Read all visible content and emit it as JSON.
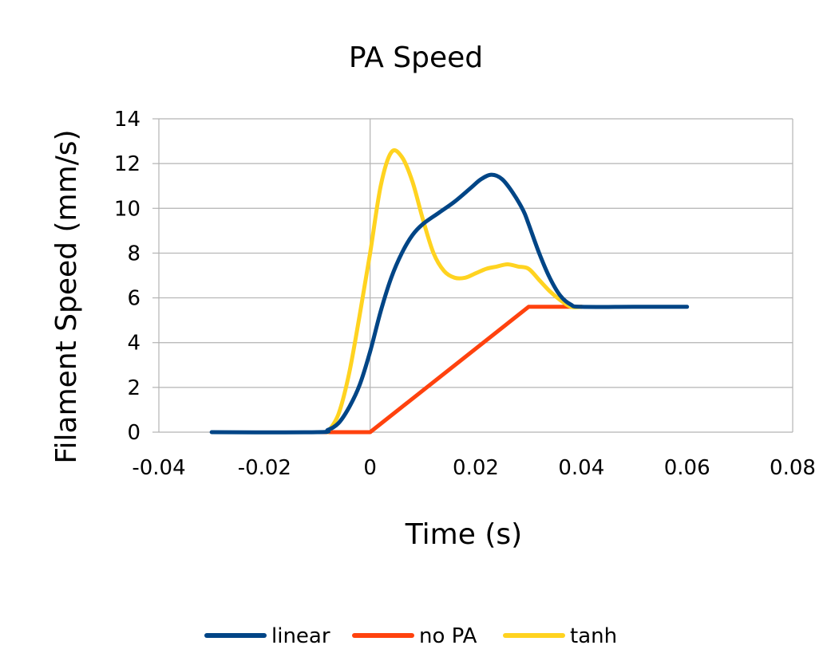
{
  "chart_data": {
    "type": "line",
    "title": "PA Speed",
    "xlabel": "Time (s)",
    "ylabel": "Filament Speed (mm/s)",
    "xlim": [
      -0.04,
      0.08
    ],
    "ylim": [
      0,
      14
    ],
    "xticks": [
      -0.04,
      -0.02,
      0,
      0.02,
      0.04,
      0.06,
      0.08
    ],
    "yticks": [
      0,
      2,
      4,
      6,
      8,
      10,
      12,
      14
    ],
    "xtick_labels": [
      "-0.04",
      "-0.02",
      "0",
      "0.02",
      "0.04",
      "0.06",
      "0.08"
    ],
    "ytick_labels": [
      "0",
      "2",
      "4",
      "6",
      "8",
      "10",
      "12",
      "14"
    ],
    "grid": true,
    "legend_position": "bottom",
    "series": [
      {
        "name": "linear",
        "color": "#004586",
        "x": [
          -0.03,
          -0.01,
          -0.008,
          -0.006,
          -0.004,
          -0.002,
          0,
          0.002,
          0.004,
          0.006,
          0.008,
          0.01,
          0.013,
          0.016,
          0.019,
          0.021,
          0.023,
          0.025,
          0.027,
          0.029,
          0.03,
          0.032,
          0.034,
          0.036,
          0.038,
          0.04,
          0.05,
          0.06
        ],
        "y": [
          0,
          0,
          0.1,
          0.4,
          1.1,
          2.1,
          3.6,
          5.4,
          6.9,
          8.0,
          8.8,
          9.3,
          9.8,
          10.3,
          10.9,
          11.3,
          11.5,
          11.3,
          10.7,
          9.9,
          9.3,
          8.0,
          6.9,
          6.1,
          5.7,
          5.6,
          5.6,
          5.6
        ]
      },
      {
        "name": "no PA",
        "color": "#ff420e",
        "x": [
          -0.01,
          0,
          0.03,
          0.04
        ],
        "y": [
          0,
          0,
          5.6,
          5.6
        ]
      },
      {
        "name": "tanh",
        "color": "#ffd320",
        "x": [
          -0.008,
          -0.006,
          -0.004,
          -0.002,
          0,
          0.002,
          0.004,
          0.006,
          0.008,
          0.01,
          0.012,
          0.014,
          0.016,
          0.018,
          0.02,
          0.022,
          0.024,
          0.026,
          0.028,
          0.03,
          0.032,
          0.034,
          0.036,
          0.038,
          0.04
        ],
        "y": [
          0,
          0.8,
          2.6,
          5.2,
          8.0,
          11.0,
          12.5,
          12.3,
          11.2,
          9.5,
          8.0,
          7.2,
          6.9,
          6.9,
          7.1,
          7.3,
          7.4,
          7.5,
          7.4,
          7.3,
          6.8,
          6.3,
          5.9,
          5.6,
          5.6
        ]
      }
    ]
  }
}
